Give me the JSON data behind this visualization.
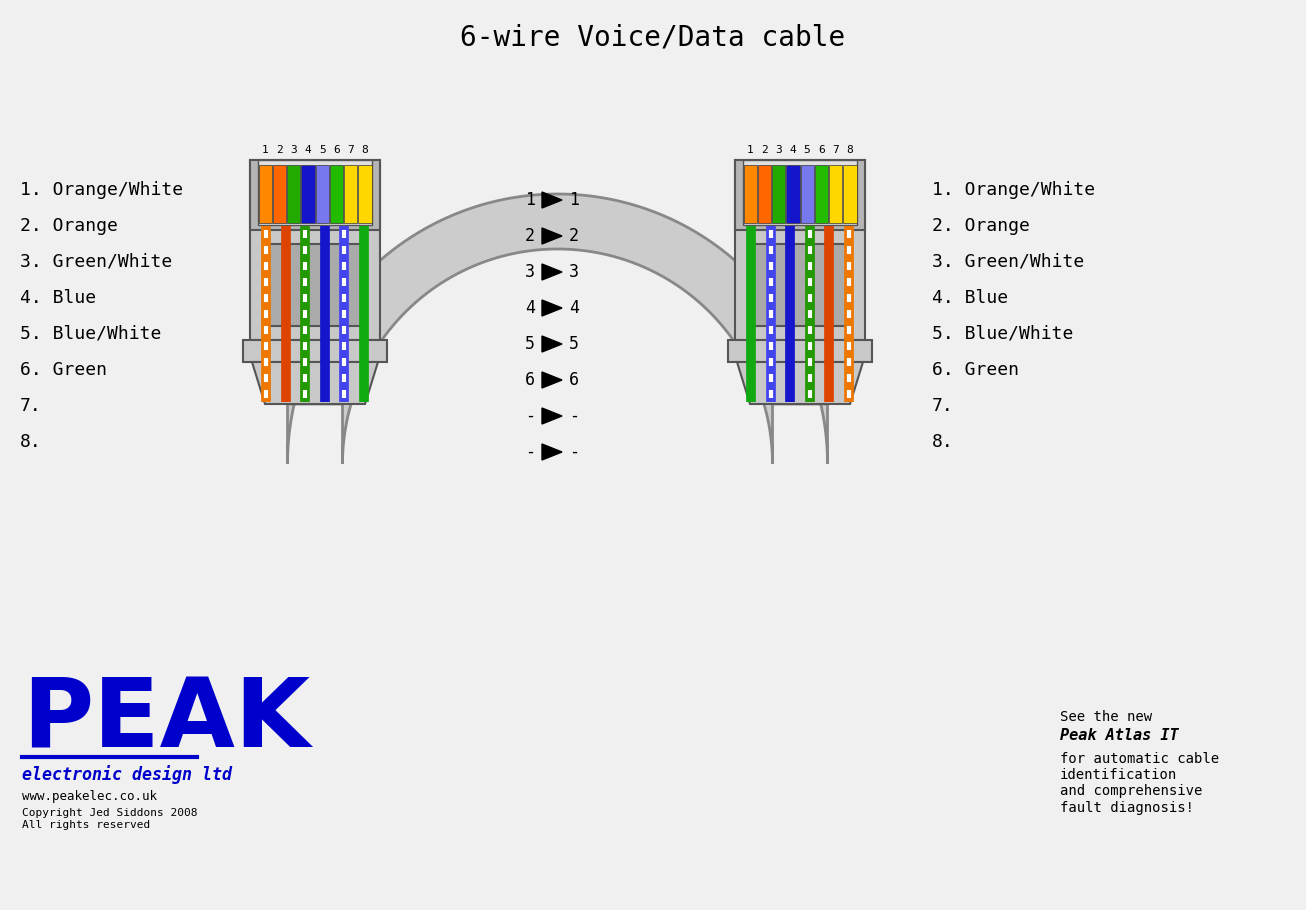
{
  "title": "6-wire Voice/Data cable",
  "title_fontsize": 20,
  "bg_color": "#f0f0f0",
  "left_pin_colors": [
    "#FFD700",
    "#FFD700",
    "#FFD700",
    "#FFD700",
    "#FFD700",
    "#FFD700",
    "#FFD700",
    "#FFD700"
  ],
  "pin_labels": [
    "1",
    "2",
    "3",
    "4",
    "5",
    "6",
    "7",
    "8"
  ],
  "left_labels": [
    "1. Orange/White",
    "2. Orange",
    "3. Green/White",
    "4. Blue",
    "5. Blue/White",
    "6. Green",
    "7.",
    "8."
  ],
  "right_labels": [
    "1. Orange/White",
    "2. Orange",
    "3. Green/White",
    "4. Blue",
    "5. Blue/White",
    "6. Green",
    "7.",
    "8."
  ],
  "center_rows": [
    "1",
    "2",
    "3",
    "4",
    "5",
    "6",
    "-",
    "-"
  ],
  "connector_gray": "#c8c8c8",
  "connector_mid": "#b5b5b5",
  "connector_dark": "#555555",
  "latch_gray": "#aaaaaa",
  "cable_gray": "#cccccc",
  "cable_outline": "#888888",
  "peak_blue": "#0000CC",
  "logo_sub": "electronic design ltd",
  "logo_url": "www.peakelec.co.uk",
  "logo_copy": "Copyright Jed Siddons 2008\nAll rights reserved",
  "note_line1": "See the new",
  "note_line2": "Peak Atlas IT",
  "note_line3": "for automatic cable\nidentification\nand comprehensive\nfault diagnosis!"
}
